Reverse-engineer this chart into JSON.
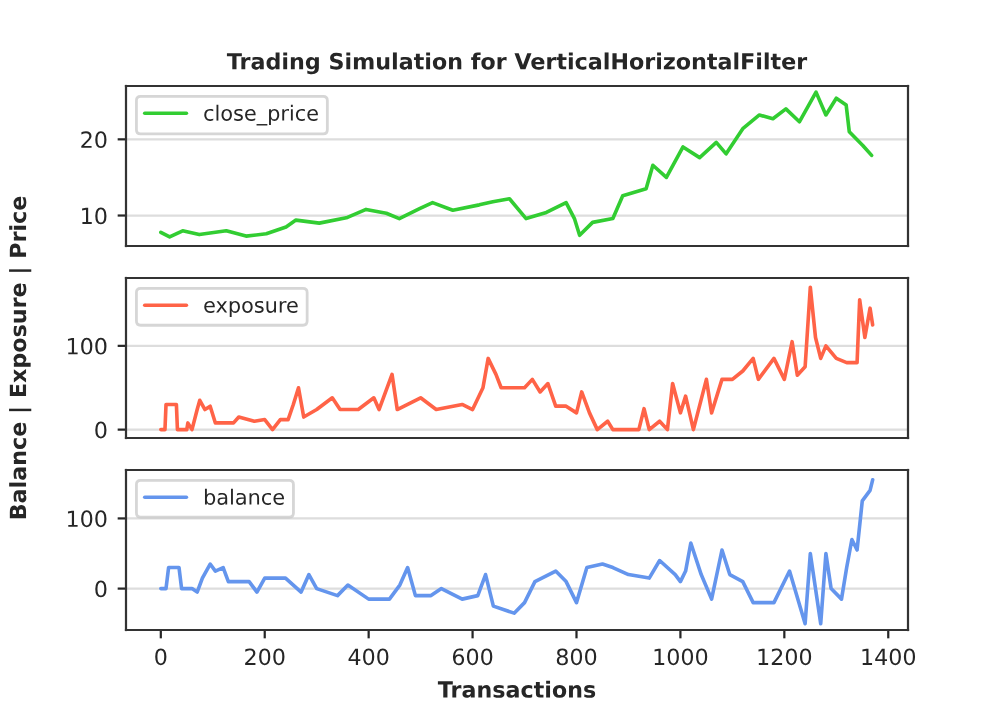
{
  "chart_data": [
    {
      "type": "line",
      "title": "Trading Simulation for VerticalHorizontalFilter",
      "xlim": [
        -67,
        1438
      ],
      "xticks": [
        0,
        200,
        400,
        600,
        800,
        1000,
        1200,
        1400
      ],
      "ylim": [
        6,
        27
      ],
      "yticks": [
        10,
        20
      ],
      "grid": "y",
      "legend": "top left",
      "tick_labels": "y",
      "series": [
        {
          "name": "close_price",
          "color": "#32cd32",
          "x": [
            0,
            17,
            42,
            74,
            126,
            164,
            203,
            241,
            260,
            305,
            357,
            395,
            434,
            459,
            498,
            523,
            562,
            613,
            639,
            671,
            703,
            742,
            780,
            796,
            806,
            831,
            870,
            889,
            934,
            947,
            973,
            1005,
            1037,
            1069,
            1088,
            1120,
            1152,
            1178,
            1203,
            1229,
            1261,
            1280,
            1300,
            1319,
            1325,
            1351,
            1368
          ],
          "values": [
            7.8,
            7.2,
            8.0,
            7.5,
            8.0,
            7.3,
            7.6,
            8.5,
            9.4,
            9.0,
            9.7,
            10.8,
            10.3,
            9.6,
            10.9,
            11.7,
            10.7,
            11.4,
            11.8,
            12.2,
            9.6,
            10.4,
            11.7,
            9.6,
            7.4,
            9.1,
            9.6,
            12.6,
            13.5,
            16.6,
            15.0,
            19.0,
            17.6,
            19.6,
            18.1,
            21.4,
            23.2,
            22.7,
            24.0,
            22.3,
            26.2,
            23.2,
            25.4,
            24.5,
            21.0,
            19.2,
            17.9
          ]
        }
      ]
    },
    {
      "type": "line",
      "ylabel": "Balance | Exposure | Price",
      "xlim": [
        -67,
        1438
      ],
      "xticks": [
        0,
        200,
        400,
        600,
        800,
        1000,
        1200,
        1400
      ],
      "ylim": [
        -10,
        181
      ],
      "yticks": [
        0,
        100
      ],
      "grid": "y",
      "legend": "top left",
      "tick_labels": "y",
      "series": [
        {
          "name": "exposure",
          "color": "#ff6347",
          "x": [
            0,
            8,
            10,
            30,
            32,
            50,
            52,
            60,
            70,
            75,
            85,
            95,
            105,
            140,
            150,
            180,
            200,
            215,
            230,
            245,
            255,
            265,
            275,
            300,
            330,
            345,
            380,
            410,
            420,
            445,
            455,
            500,
            530,
            580,
            600,
            620,
            630,
            645,
            655,
            700,
            715,
            730,
            745,
            760,
            780,
            800,
            810,
            825,
            840,
            860,
            870,
            920,
            930,
            940,
            960,
            975,
            985,
            1000,
            1010,
            1025,
            1050,
            1060,
            1080,
            1100,
            1120,
            1140,
            1150,
            1180,
            1200,
            1215,
            1225,
            1240,
            1250,
            1260,
            1270,
            1280,
            1300,
            1320,
            1340,
            1345,
            1355,
            1365,
            1370
          ],
          "values": [
            0,
            0,
            30,
            30,
            0,
            0,
            8,
            0,
            24,
            35,
            24,
            28,
            8,
            8,
            15,
            10,
            12,
            0,
            12,
            12,
            30,
            50,
            15,
            24,
            38,
            24,
            24,
            38,
            24,
            66,
            24,
            38,
            24,
            30,
            24,
            50,
            85,
            66,
            50,
            50,
            60,
            45,
            55,
            28,
            28,
            20,
            45,
            20,
            0,
            10,
            0,
            0,
            25,
            0,
            10,
            0,
            55,
            20,
            40,
            0,
            60,
            20,
            60,
            60,
            70,
            85,
            60,
            85,
            60,
            105,
            65,
            75,
            170,
            110,
            85,
            100,
            85,
            80,
            80,
            155,
            110,
            145,
            125
          ]
        }
      ]
    },
    {
      "type": "line",
      "xlabel": "Transactions",
      "xlim": [
        -67,
        1438
      ],
      "xticks": [
        0,
        200,
        400,
        600,
        800,
        1000,
        1200,
        1400
      ],
      "ylim": [
        -59,
        169
      ],
      "yticks": [
        0,
        100
      ],
      "grid": "y",
      "legend": "top left",
      "series": [
        {
          "name": "balance",
          "color": "#6495ed",
          "x": [
            0,
            10,
            15,
            35,
            40,
            60,
            70,
            80,
            95,
            105,
            120,
            130,
            170,
            185,
            200,
            240,
            270,
            285,
            300,
            340,
            360,
            400,
            440,
            460,
            475,
            490,
            520,
            540,
            580,
            610,
            625,
            640,
            680,
            700,
            720,
            760,
            780,
            800,
            820,
            850,
            870,
            900,
            940,
            960,
            990,
            1000,
            1010,
            1020,
            1040,
            1060,
            1080,
            1095,
            1120,
            1140,
            1180,
            1210,
            1240,
            1250,
            1270,
            1280,
            1290,
            1310,
            1320,
            1330,
            1340,
            1350,
            1365,
            1370
          ],
          "values": [
            0,
            0,
            30,
            30,
            0,
            0,
            -5,
            15,
            35,
            25,
            30,
            10,
            10,
            -5,
            15,
            15,
            -5,
            20,
            0,
            -10,
            5,
            -15,
            -15,
            5,
            30,
            -10,
            -10,
            0,
            -15,
            -10,
            20,
            -25,
            -35,
            -20,
            10,
            25,
            10,
            -20,
            30,
            35,
            30,
            20,
            15,
            40,
            20,
            10,
            25,
            65,
            20,
            -15,
            55,
            20,
            10,
            -20,
            -20,
            25,
            -50,
            50,
            -50,
            50,
            0,
            -15,
            30,
            70,
            55,
            125,
            140,
            155
          ]
        }
      ]
    }
  ]
}
